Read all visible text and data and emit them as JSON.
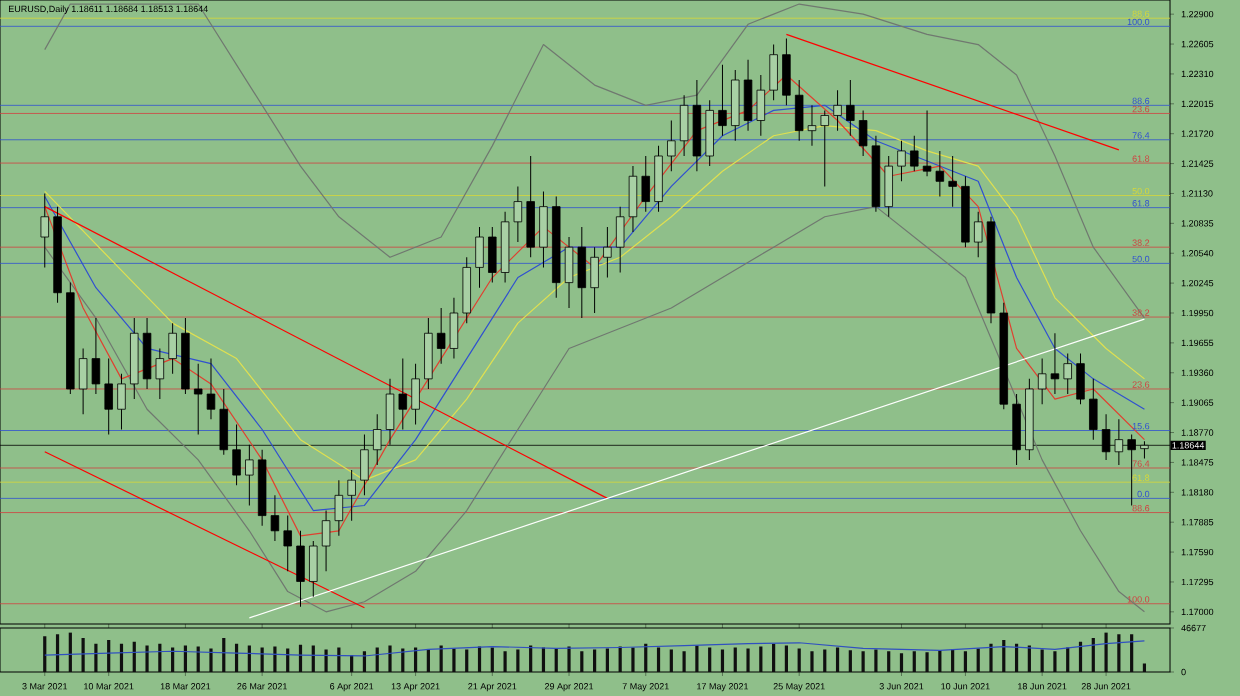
{
  "chart_data": [
    {
      "type": "candlestick",
      "title": "EURUSD,Daily 1.18611 1.18684 1.18513 1.18644",
      "tick_labels": "y",
      "categories": [
        null,
        null,
        null,
        null,
        null,
        null,
        null,
        null,
        null,
        null,
        null,
        null,
        null,
        null,
        null,
        null,
        null,
        null,
        null,
        null,
        null,
        null,
        null,
        null,
        null,
        null,
        null,
        null,
        null,
        null,
        null,
        null,
        null,
        null,
        null,
        null,
        null,
        null,
        null,
        null,
        null,
        null,
        null,
        null,
        null,
        null,
        null,
        null,
        null,
        null,
        null,
        null,
        null,
        null,
        null,
        null,
        null,
        null,
        null,
        null,
        null,
        null,
        null,
        null,
        null,
        null,
        null,
        null,
        null,
        null,
        null,
        null,
        null,
        null,
        null,
        null,
        null,
        null,
        null,
        null,
        null,
        null,
        null,
        null,
        null,
        null,
        null
      ],
      "ylim": [
        1.1688,
        1.2304
      ],
      "yticks": [
        {
          "value": 1.17,
          "label": "1.17000"
        },
        {
          "value": 1.17295,
          "label": "1.17295"
        },
        {
          "value": 1.1759,
          "label": "1.17590"
        },
        {
          "value": 1.17885,
          "label": "1.17885"
        },
        {
          "value": 1.1818,
          "label": "1.18180"
        },
        {
          "value": 1.18475,
          "label": "1.18475"
        },
        {
          "value": 1.1877,
          "label": "1.18770"
        },
        {
          "value": 1.19065,
          "label": "1.19065"
        },
        {
          "value": 1.1936,
          "label": "1.19360"
        },
        {
          "value": 1.19655,
          "label": "1.19655"
        },
        {
          "value": 1.1995,
          "label": "1.19950"
        },
        {
          "value": 1.20245,
          "label": "1.20245"
        },
        {
          "value": 1.2054,
          "label": "1.20540"
        },
        {
          "value": 1.20835,
          "label": "1.20835"
        },
        {
          "value": 1.2113,
          "label": "1.21130"
        },
        {
          "value": 1.21425,
          "label": "1.21425"
        },
        {
          "value": 1.2172,
          "label": "1.21720"
        },
        {
          "value": 1.22015,
          "label": "1.22015"
        },
        {
          "value": 1.2231,
          "label": "1.22310"
        },
        {
          "value": 1.22605,
          "label": "1.22605"
        },
        {
          "value": 1.229,
          "label": "1.22900"
        }
      ],
      "ohlc": [
        [
          1.207,
          1.2113,
          1.204,
          1.209
        ],
        [
          1.209,
          1.21,
          1.2005,
          1.2015
        ],
        [
          1.2015,
          1.2025,
          1.1915,
          1.192
        ],
        [
          1.192,
          1.196,
          1.1895,
          1.195
        ],
        [
          1.195,
          1.199,
          1.1915,
          1.1925
        ],
        [
          1.1925,
          1.195,
          1.1875,
          1.19
        ],
        [
          1.19,
          1.1935,
          1.188,
          1.1925
        ],
        [
          1.1925,
          1.199,
          1.191,
          1.1975
        ],
        [
          1.1975,
          1.199,
          1.192,
          1.193
        ],
        [
          1.193,
          1.196,
          1.191,
          1.195
        ],
        [
          1.195,
          1.1985,
          1.1935,
          1.1975
        ],
        [
          1.1975,
          1.199,
          1.1915,
          1.192
        ],
        [
          1.192,
          1.1945,
          1.1875,
          1.1915
        ],
        [
          1.1915,
          1.195,
          1.189,
          1.19
        ],
        [
          1.19,
          1.192,
          1.1855,
          1.186
        ],
        [
          1.186,
          1.1885,
          1.1825,
          1.1835
        ],
        [
          1.1835,
          1.1865,
          1.1805,
          1.185
        ],
        [
          1.185,
          1.186,
          1.1785,
          1.1795
        ],
        [
          1.1795,
          1.1815,
          1.177,
          1.178
        ],
        [
          1.178,
          1.1795,
          1.174,
          1.1765
        ],
        [
          1.1765,
          1.178,
          1.1705,
          1.173
        ],
        [
          1.173,
          1.177,
          1.1715,
          1.1765
        ],
        [
          1.1765,
          1.18,
          1.174,
          1.179
        ],
        [
          1.179,
          1.183,
          1.1775,
          1.1815
        ],
        [
          1.1815,
          1.184,
          1.179,
          1.183
        ],
        [
          1.183,
          1.1875,
          1.1815,
          1.186
        ],
        [
          1.186,
          1.1895,
          1.1845,
          1.188
        ],
        [
          1.188,
          1.193,
          1.1865,
          1.1915
        ],
        [
          1.1915,
          1.195,
          1.188,
          1.19
        ],
        [
          1.19,
          1.1945,
          1.1885,
          1.193
        ],
        [
          1.193,
          1.199,
          1.192,
          1.1975
        ],
        [
          1.1975,
          1.2,
          1.1945,
          1.196
        ],
        [
          1.196,
          1.201,
          1.195,
          1.1995
        ],
        [
          1.1995,
          1.205,
          1.1985,
          1.204
        ],
        [
          1.204,
          1.208,
          1.202,
          1.207
        ],
        [
          1.207,
          1.208,
          1.2025,
          1.2035
        ],
        [
          1.2035,
          1.2095,
          1.2025,
          1.2085
        ],
        [
          1.2085,
          1.212,
          1.2065,
          1.2105
        ],
        [
          1.2105,
          1.215,
          1.205,
          1.206
        ],
        [
          1.206,
          1.2115,
          1.204,
          1.21
        ],
        [
          1.21,
          1.211,
          1.201,
          1.2025
        ],
        [
          1.2025,
          1.207,
          1.2,
          1.206
        ],
        [
          1.206,
          1.208,
          1.199,
          1.202
        ],
        [
          1.202,
          1.206,
          1.1995,
          1.205
        ],
        [
          1.205,
          1.208,
          1.203,
          1.206
        ],
        [
          1.206,
          1.21,
          1.2035,
          1.209
        ],
        [
          1.209,
          1.214,
          1.2075,
          1.213
        ],
        [
          1.213,
          1.215,
          1.2095,
          1.2105
        ],
        [
          1.2105,
          1.216,
          1.2095,
          1.215
        ],
        [
          1.215,
          1.2185,
          1.2135,
          1.2165
        ],
        [
          1.2165,
          1.221,
          1.215,
          1.22
        ],
        [
          1.22,
          1.2225,
          1.2135,
          1.215
        ],
        [
          1.215,
          1.2205,
          1.214,
          1.2195
        ],
        [
          1.2195,
          1.224,
          1.217,
          1.218
        ],
        [
          1.218,
          1.2235,
          1.2165,
          1.2225
        ],
        [
          1.2225,
          1.2245,
          1.2175,
          1.2185
        ],
        [
          1.2185,
          1.223,
          1.217,
          1.2215
        ],
        [
          1.2215,
          1.226,
          1.2205,
          1.225
        ],
        [
          1.225,
          1.2266,
          1.22,
          1.221
        ],
        [
          1.221,
          1.2225,
          1.2165,
          1.2175
        ],
        [
          1.2175,
          1.22,
          1.216,
          1.218
        ],
        [
          1.218,
          1.2195,
          1.212,
          1.219
        ],
        [
          1.219,
          1.2215,
          1.2175,
          1.22
        ],
        [
          1.22,
          1.2225,
          1.217,
          1.2185
        ],
        [
          1.2185,
          1.2195,
          1.215,
          1.216
        ],
        [
          1.216,
          1.217,
          1.2095,
          1.21
        ],
        [
          1.21,
          1.215,
          1.209,
          1.214
        ],
        [
          1.214,
          1.2165,
          1.2125,
          1.2155
        ],
        [
          1.2155,
          1.217,
          1.2135,
          1.214
        ],
        [
          1.214,
          1.2195,
          1.213,
          1.2135
        ],
        [
          1.2135,
          1.2155,
          1.211,
          1.2125
        ],
        [
          1.2125,
          1.215,
          1.21,
          1.212
        ],
        [
          1.212,
          1.213,
          1.206,
          1.2065
        ],
        [
          1.2065,
          1.2095,
          1.205,
          1.2085
        ],
        [
          1.2085,
          1.209,
          1.1985,
          1.1995
        ],
        [
          1.1995,
          1.2005,
          1.19,
          1.1905
        ],
        [
          1.1905,
          1.1915,
          1.1845,
          1.186
        ],
        [
          1.186,
          1.193,
          1.185,
          1.192
        ],
        [
          1.192,
          1.195,
          1.1905,
          1.1935
        ],
        [
          1.1935,
          1.1975,
          1.1915,
          1.193
        ],
        [
          1.193,
          1.1955,
          1.1915,
          1.1945
        ],
        [
          1.1945,
          1.1955,
          1.1905,
          1.191
        ],
        [
          1.191,
          1.193,
          1.187,
          1.188
        ],
        [
          1.188,
          1.1895,
          1.185,
          1.1858
        ],
        [
          1.1858,
          1.189,
          1.1845,
          1.187
        ],
        [
          1.187,
          1.1875,
          1.1805,
          1.186
        ],
        [
          1.18611,
          1.18684,
          1.18513,
          1.18644
        ]
      ],
      "colors": [
        "#a8d0a4",
        "#000000",
        "#000000",
        "#a8d0a4",
        "#000000",
        "#000000",
        "#a8d0a4",
        "#a8d0a4",
        "#000000",
        "#a8d0a4",
        "#a8d0a4",
        "#000000",
        "#000000",
        "#000000",
        "#000000",
        "#000000",
        "#a8d0a4",
        "#000000",
        "#000000",
        "#000000",
        "#000000",
        "#a8d0a4",
        "#a8d0a4",
        "#a8d0a4",
        "#a8d0a4",
        "#a8d0a4",
        "#a8d0a4",
        "#a8d0a4",
        "#000000",
        "#a8d0a4",
        "#a8d0a4",
        "#000000",
        "#a8d0a4",
        "#a8d0a4",
        "#a8d0a4",
        "#000000",
        "#a8d0a4",
        "#a8d0a4",
        "#000000",
        "#a8d0a4",
        "#000000",
        "#a8d0a4",
        "#000000",
        "#a8d0a4",
        "#a8d0a4",
        "#a8d0a4",
        "#a8d0a4",
        "#000000",
        "#a8d0a4",
        "#a8d0a4",
        "#a8d0a4",
        "#000000",
        "#a8d0a4",
        "#000000",
        "#a8d0a4",
        "#000000",
        "#a8d0a4",
        "#a8d0a4",
        "#000000",
        "#000000",
        "#a8d0a4",
        "#a8d0a4",
        "#a8d0a4",
        "#000000",
        "#000000",
        "#000000",
        "#a8d0a4",
        "#a8d0a4",
        "#000000",
        "#000000",
        "#000000",
        "#000000",
        "#000000",
        "#a8d0a4",
        "#000000",
        "#000000",
        "#000000",
        "#a8d0a4",
        "#a8d0a4",
        "#000000",
        "#a8d0a4",
        "#000000",
        "#000000",
        "#000000",
        "#a8d0a4",
        "#000000",
        "#a8d0a4"
      ],
      "series": [
        {
          "type": "line",
          "color": "#707870",
          "values": [
            1.2255,
            null,
            1.23,
            null,
            null,
            null,
            null,
            null,
            null,
            null,
            null,
            null,
            1.23,
            null,
            null,
            null,
            1.222,
            null,
            null,
            null,
            1.214,
            null,
            null,
            1.209,
            null,
            null,
            null,
            1.205,
            null,
            null,
            null,
            1.207,
            null,
            null,
            null,
            1.216,
            null,
            null,
            null,
            1.226,
            null,
            null,
            null,
            1.222,
            null,
            null,
            null,
            1.22,
            null,
            null,
            null,
            1.221,
            null,
            null,
            null,
            1.228,
            null,
            null,
            null,
            1.23,
            null,
            null,
            null,
            null,
            1.229,
            null,
            null,
            null,
            null,
            1.227,
            null,
            null,
            null,
            1.226,
            null,
            null,
            1.223,
            null,
            null,
            1.215,
            null,
            null,
            1.206,
            null,
            null,
            null,
            1.199
          ]
        },
        {
          "type": "line",
          "color": "#707870",
          "values": [
            1.206,
            null,
            null,
            null,
            1.199,
            null,
            null,
            null,
            1.19,
            null,
            null,
            null,
            1.185,
            null,
            null,
            null,
            1.178,
            null,
            null,
            1.172,
            null,
            null,
            1.17,
            null,
            null,
            1.171,
            null,
            null,
            null,
            1.174,
            null,
            null,
            null,
            1.18,
            null,
            null,
            null,
            1.188,
            null,
            null,
            null,
            1.196,
            null,
            null,
            null,
            1.198,
            null,
            null,
            null,
            1.2,
            null,
            null,
            null,
            1.203,
            null,
            null,
            null,
            1.206,
            null,
            null,
            null,
            1.209,
            null,
            null,
            null,
            1.21,
            null,
            null,
            null,
            1.206,
            null,
            null,
            1.203,
            null,
            null,
            1.194,
            null,
            null,
            1.185,
            null,
            null,
            1.178,
            null,
            null,
            1.172,
            null,
            1.17
          ]
        },
        {
          "type": "line",
          "color": "#e0e050",
          "values": [
            1.2115,
            null,
            null,
            null,
            null,
            1.205,
            null,
            null,
            null,
            null,
            1.1985,
            null,
            null,
            null,
            null,
            1.195,
            null,
            null,
            null,
            null,
            1.187,
            null,
            null,
            null,
            null,
            1.183,
            null,
            null,
            null,
            1.185,
            null,
            null,
            null,
            1.191,
            null,
            null,
            null,
            1.1985,
            null,
            null,
            null,
            1.203,
            null,
            null,
            null,
            1.205,
            null,
            null,
            null,
            1.209,
            null,
            null,
            null,
            1.2135,
            null,
            null,
            null,
            1.217,
            null,
            null,
            null,
            1.218,
            null,
            null,
            null,
            1.2175,
            null,
            null,
            null,
            1.2155,
            null,
            null,
            null,
            1.214,
            null,
            null,
            1.209,
            null,
            null,
            1.201,
            null,
            null,
            null,
            1.196,
            null,
            null,
            1.193
          ]
        },
        {
          "type": "line",
          "color": "#3050d0",
          "values": [
            1.211,
            null,
            null,
            null,
            1.202,
            null,
            null,
            null,
            1.196,
            null,
            null,
            null,
            null,
            1.1945,
            null,
            null,
            null,
            1.188,
            null,
            null,
            null,
            1.18,
            null,
            null,
            null,
            1.1805,
            null,
            null,
            null,
            1.187,
            null,
            null,
            null,
            1.195,
            null,
            null,
            null,
            1.203,
            null,
            null,
            null,
            1.206,
            null,
            null,
            null,
            1.206,
            null,
            null,
            null,
            1.212,
            null,
            null,
            null,
            1.217,
            null,
            null,
            null,
            1.2195,
            null,
            null,
            null,
            1.22,
            null,
            null,
            null,
            1.2165,
            null,
            null,
            null,
            1.2145,
            null,
            null,
            null,
            1.2125,
            null,
            null,
            1.203,
            null,
            null,
            1.196,
            null,
            null,
            1.193,
            null,
            null,
            null,
            1.19
          ]
        },
        {
          "type": "line",
          "color": "#e04030",
          "values": [
            1.21,
            null,
            null,
            1.2,
            null,
            null,
            1.193,
            null,
            null,
            null,
            1.195,
            null,
            null,
            1.1925,
            null,
            null,
            null,
            1.185,
            null,
            null,
            1.1775,
            null,
            null,
            1.178,
            null,
            null,
            null,
            1.187,
            null,
            null,
            null,
            1.195,
            null,
            null,
            null,
            1.203,
            null,
            null,
            null,
            1.208,
            null,
            null,
            null,
            1.204,
            null,
            null,
            null,
            1.211,
            null,
            null,
            null,
            1.2175,
            null,
            null,
            null,
            1.2195,
            null,
            null,
            1.223,
            null,
            null,
            null,
            1.2185,
            null,
            null,
            null,
            1.213,
            null,
            null,
            null,
            1.214,
            null,
            null,
            1.21,
            null,
            null,
            1.196,
            null,
            null,
            1.191,
            null,
            null,
            1.192,
            null,
            null,
            null,
            1.187
          ]
        },
        {
          "type": "line",
          "color": "#ff0000",
          "values": [
            1.21,
            null,
            null,
            null,
            null,
            null,
            null,
            null,
            null,
            null,
            null,
            null,
            null,
            null,
            null,
            null,
            null,
            null,
            null,
            null,
            null,
            null,
            null,
            null,
            null,
            null,
            null,
            null,
            null,
            null,
            null,
            null,
            null,
            null,
            null,
            null,
            null,
            null,
            null,
            null,
            null,
            null,
            null,
            null,
            1.1812,
            null,
            null,
            null,
            null,
            null,
            null,
            null,
            null,
            null,
            null,
            null,
            null,
            null,
            null,
            null,
            null,
            null,
            null,
            null,
            null,
            null,
            null,
            null,
            null,
            null,
            null,
            null,
            null,
            null,
            null,
            null,
            null,
            null,
            null,
            null,
            null,
            null,
            null,
            null,
            null,
            null,
            null
          ]
        },
        {
          "type": "line",
          "color": "#ff0000",
          "values": [
            1.1858,
            null,
            null,
            null,
            null,
            null,
            null,
            null,
            null,
            null,
            null,
            null,
            null,
            null,
            null,
            null,
            null,
            null,
            null,
            null,
            null,
            null,
            null,
            null,
            null,
            1.1704,
            null,
            null,
            null,
            null,
            null,
            null,
            null,
            null,
            null,
            null,
            null,
            null,
            null,
            null,
            null,
            null,
            null,
            null,
            null,
            null,
            null,
            null,
            null,
            null,
            null,
            null,
            null,
            null,
            null,
            null,
            null,
            null,
            null,
            null,
            null,
            null,
            null,
            null,
            null,
            null,
            null,
            null,
            null,
            null,
            null,
            null,
            null,
            null,
            null,
            null,
            null,
            null,
            null,
            null,
            null,
            null,
            null,
            null,
            null,
            null,
            null
          ]
        },
        {
          "type": "line",
          "color": "#ff0000",
          "values": [
            null,
            null,
            null,
            null,
            null,
            null,
            null,
            null,
            null,
            null,
            null,
            null,
            null,
            null,
            null,
            null,
            null,
            null,
            null,
            null,
            null,
            null,
            null,
            null,
            null,
            null,
            null,
            null,
            null,
            null,
            null,
            null,
            null,
            null,
            null,
            null,
            null,
            null,
            null,
            null,
            null,
            null,
            null,
            null,
            null,
            null,
            null,
            null,
            null,
            null,
            null,
            null,
            null,
            null,
            null,
            null,
            null,
            null,
            1.227,
            null,
            null,
            null,
            null,
            null,
            null,
            null,
            null,
            null,
            null,
            null,
            null,
            null,
            null,
            null,
            null,
            null,
            null,
            null,
            null,
            null,
            null,
            null,
            null,
            null,
            1.2156,
            null,
            null
          ]
        },
        {
          "type": "line",
          "color": "#ffffff",
          "values": [
            null,
            null,
            null,
            null,
            null,
            null,
            null,
            null,
            null,
            null,
            null,
            null,
            null,
            null,
            null,
            null,
            1.1694,
            null,
            null,
            null,
            null,
            null,
            null,
            null,
            null,
            null,
            null,
            null,
            null,
            null,
            null,
            null,
            null,
            null,
            null,
            null,
            null,
            null,
            null,
            null,
            null,
            null,
            null,
            null,
            null,
            null,
            null,
            null,
            null,
            null,
            null,
            null,
            null,
            null,
            null,
            null,
            null,
            null,
            null,
            null,
            null,
            null,
            null,
            null,
            null,
            null,
            null,
            null,
            null,
            null,
            null,
            null,
            null,
            null,
            null,
            null,
            null,
            null,
            null,
            null,
            null,
            null,
            null,
            null,
            null,
            null,
            1.1989
          ]
        }
      ],
      "ref_lines": [
        {
          "axis": "y",
          "value": 1.2286,
          "color": "#d8d838"
        },
        {
          "axis": "y",
          "value": 1.2278,
          "color": "#3050d0"
        },
        {
          "axis": "y",
          "value": 1.22,
          "color": "#3050d0"
        },
        {
          "axis": "y",
          "value": 1.2192,
          "color": "#d04040"
        },
        {
          "axis": "y",
          "value": 1.2166,
          "color": "#3050d0"
        },
        {
          "axis": "y",
          "value": 1.2143,
          "color": "#d04040"
        },
        {
          "axis": "y",
          "value": 1.2111,
          "color": "#d8d838"
        },
        {
          "axis": "y",
          "value": 1.2099,
          "color": "#3050d0"
        },
        {
          "axis": "y",
          "value": 1.206,
          "color": "#d04040"
        },
        {
          "axis": "y",
          "value": 1.2044,
          "color": "#3050d0"
        },
        {
          "axis": "y",
          "value": 1.1991,
          "color": "#d04040"
        },
        {
          "axis": "y",
          "value": 1.192,
          "color": "#d04040"
        },
        {
          "axis": "y",
          "value": 1.1879,
          "color": "#3050d0"
        },
        {
          "axis": "y",
          "value": 1.18644,
          "label": "1.18644",
          "color": "#000000"
        },
        {
          "axis": "y",
          "value": 1.1842,
          "color": "#d04040"
        },
        {
          "axis": "y",
          "value": 1.1828,
          "color": "#d8d838"
        },
        {
          "axis": "y",
          "value": 1.1812,
          "color": "#3050d0"
        },
        {
          "axis": "y",
          "value": 1.1798,
          "color": "#d04040"
        },
        {
          "axis": "y",
          "value": 1.1708,
          "color": "#d04040"
        }
      ],
      "annotations": [
        {
          "text": "88.6",
          "y": 1.2286
        },
        {
          "text": "100.0",
          "y": 1.2278
        },
        {
          "text": "88.6",
          "y": 1.22
        },
        {
          "text": "23.6",
          "y": 1.2192
        },
        {
          "text": "76.4",
          "y": 1.2166
        },
        {
          "text": "61.8",
          "y": 1.2143
        },
        {
          "text": "50.0",
          "y": 1.2111
        },
        {
          "text": "61.8",
          "y": 1.2099
        },
        {
          "text": "38.2",
          "y": 1.206
        },
        {
          "text": "50.0",
          "y": 1.2044
        },
        {
          "text": "38.2",
          "y": 1.1991
        },
        {
          "text": "23.6",
          "y": 1.192
        },
        {
          "text": "15.6",
          "y": 1.1879
        },
        {
          "text": "76.4",
          "y": 1.1842
        },
        {
          "text": "61.8",
          "y": 1.1828
        },
        {
          "text": "0.0",
          "y": 1.1812
        },
        {
          "text": "88.6",
          "y": 1.1798
        },
        {
          "text": "100.0",
          "y": 1.1708
        }
      ]
    },
    {
      "type": "bar",
      "ylim": [
        0,
        46677
      ],
      "yticks": [
        0,
        46677
      ],
      "categories": [
        "3 Mar 2021",
        null,
        null,
        null,
        null,
        "10 Mar 2021",
        null,
        null,
        null,
        null,
        null,
        "18 Mar 2021",
        null,
        null,
        null,
        null,
        null,
        "26 Mar 2021",
        null,
        null,
        null,
        null,
        null,
        null,
        "6 Apr 2021",
        null,
        null,
        null,
        null,
        "13 Apr 2021",
        null,
        null,
        null,
        null,
        null,
        "21 Apr 2021",
        null,
        null,
        null,
        null,
        null,
        "29 Apr 2021",
        null,
        null,
        null,
        null,
        null,
        "7 May 2021",
        null,
        null,
        null,
        null,
        null,
        "17 May 2021",
        null,
        null,
        null,
        null,
        null,
        "25 May 2021",
        null,
        null,
        null,
        null,
        null,
        null,
        null,
        "3 Jun 2021",
        null,
        null,
        null,
        null,
        "10 Jun 2021",
        null,
        null,
        null,
        null,
        null,
        "18 Jun 2021",
        null,
        null,
        null,
        null,
        "28 Jun 2021",
        null,
        null,
        null
      ],
      "series": [
        {
          "type": "bar",
          "color": "#101010",
          "values": [
            38000,
            40000,
            42000,
            36000,
            30000,
            34000,
            30000,
            32000,
            28000,
            30000,
            26000,
            28000,
            27000,
            25000,
            36000,
            30000,
            28000,
            26000,
            27000,
            25000,
            29000,
            28000,
            24000,
            26000,
            18000,
            22000,
            26000,
            28000,
            25000,
            26000,
            24000,
            28000,
            25000,
            24000,
            27000,
            26000,
            22000,
            24000,
            28000,
            26000,
            25000,
            27000,
            22000,
            24000,
            25000,
            27000,
            26000,
            30000,
            26000,
            24000,
            22000,
            28000,
            26000,
            24000,
            26000,
            25000,
            27000,
            30000,
            28000,
            25000,
            22000,
            24000,
            26000,
            23000,
            22000,
            24000,
            22000,
            20000,
            22000,
            21000,
            23000,
            24000,
            22000,
            25000,
            30000,
            34000,
            30000,
            28000,
            24000,
            22000,
            26000,
            32000,
            36000,
            42000,
            40000,
            40000,
            9000
          ]
        },
        {
          "type": "line",
          "color": "#3050c0",
          "values": [
            18000,
            null,
            null,
            null,
            null,
            20000,
            null,
            null,
            null,
            null,
            22000,
            null,
            null,
            null,
            null,
            20000,
            null,
            null,
            null,
            null,
            18000,
            null,
            null,
            null,
            null,
            17000,
            null,
            null,
            null,
            null,
            24000,
            null,
            null,
            null,
            null,
            27000,
            null,
            null,
            null,
            null,
            25000,
            null,
            null,
            null,
            null,
            26000,
            null,
            null,
            null,
            null,
            28000,
            null,
            null,
            null,
            null,
            30000,
            null,
            null,
            null,
            31000,
            null,
            null,
            null,
            null,
            25000,
            null,
            null,
            null,
            null,
            null,
            23000,
            null,
            null,
            null,
            null,
            27000,
            null,
            null,
            null,
            24000,
            null,
            null,
            null,
            30000,
            null,
            null,
            33000
          ]
        }
      ]
    }
  ]
}
